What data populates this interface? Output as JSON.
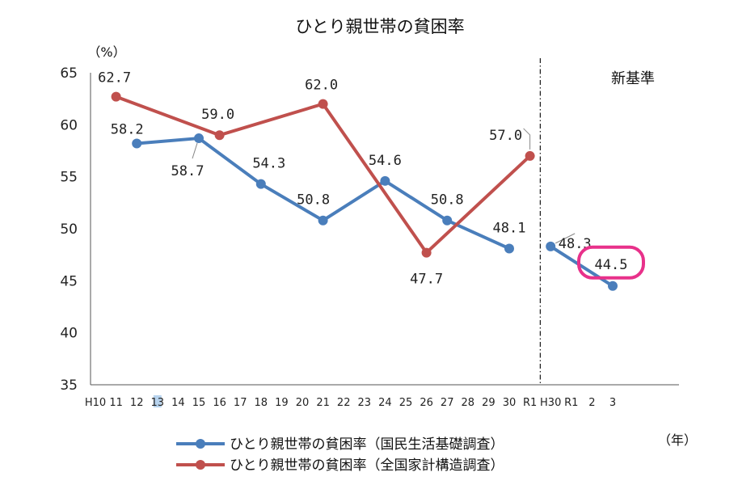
{
  "chart_data": {
    "type": "line",
    "title": "ひとり親世帯の貧困率",
    "ylabel": "（%）",
    "xlabel": "（年）",
    "ylim": [
      35,
      65
    ],
    "yticks": [
      "35",
      "40",
      "45",
      "50",
      "55",
      "60",
      "65"
    ],
    "categories": [
      "H10",
      "11",
      "12",
      "13",
      "14",
      "15",
      "16",
      "17",
      "18",
      "19",
      "20",
      "21",
      "22",
      "23",
      "24",
      "25",
      "26",
      "27",
      "28",
      "29",
      "30",
      "R1",
      "H30",
      "R1",
      "2",
      "3"
    ],
    "highlighted_category": "13",
    "divider_label": "新基準",
    "divider_after_category_index": 21,
    "series": [
      {
        "name": "ひとり親世帯の貧困率（国民生活基礎調査）",
        "color": "#4a7ebb",
        "segments": [
          [
            {
              "category_index": 2,
              "value": 58.2,
              "label": "58.2"
            },
            {
              "category_index": 5,
              "value": 58.7,
              "label": "58.7"
            },
            {
              "category_index": 8,
              "value": 54.3,
              "label": "54.3"
            },
            {
              "category_index": 11,
              "value": 50.8,
              "label": "50.8"
            },
            {
              "category_index": 14,
              "value": 54.6,
              "label": "54.6"
            },
            {
              "category_index": 17,
              "value": 50.8,
              "label": "50.8"
            },
            {
              "category_index": 20,
              "value": 48.1,
              "label": "48.1"
            }
          ],
          [
            {
              "category_index": 22,
              "value": 48.3,
              "label": "48.3"
            },
            {
              "category_index": 25,
              "value": 44.5,
              "label": "44.5",
              "highlight": true
            }
          ]
        ]
      },
      {
        "name": "ひとり親世帯の貧困率（全国家計構造調査）",
        "color": "#c0504d",
        "segments": [
          [
            {
              "category_index": 1,
              "value": 62.7,
              "label": "62.7"
            },
            {
              "category_index": 6,
              "value": 59.0,
              "label": "59.0"
            },
            {
              "category_index": 11,
              "value": 62.0,
              "label": "62.0"
            },
            {
              "category_index": 16,
              "value": 47.7,
              "label": "47.7"
            },
            {
              "category_index": 21,
              "value": 57.0,
              "label": "57.0"
            }
          ]
        ]
      }
    ],
    "highlight_color": "#e8318a"
  }
}
